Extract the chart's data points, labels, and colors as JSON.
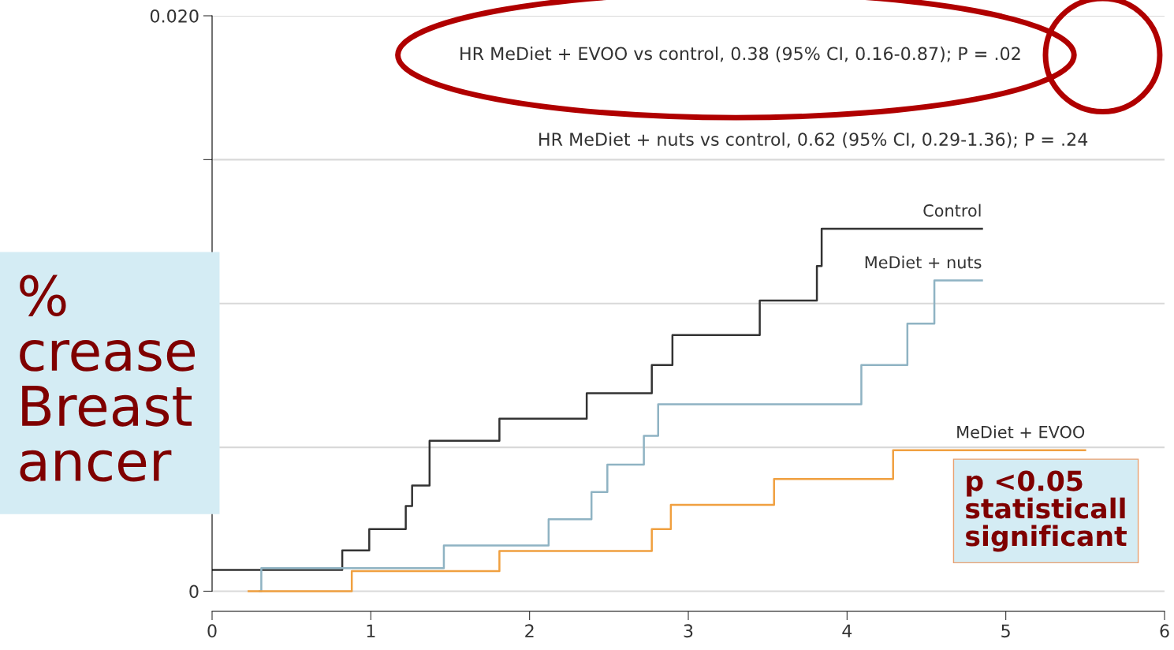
{
  "chart_data": {
    "type": "step",
    "xlim": [
      0,
      6
    ],
    "xticks": [
      0,
      1,
      2,
      3,
      4,
      5,
      6
    ],
    "ylim": [
      -0.0007,
      0.02
    ],
    "yticks": [
      0,
      {
        "value": 0.005,
        "label": null
      },
      {
        "value": 0.01,
        "label": null
      },
      {
        "value": 0.015,
        "label": null
      },
      {
        "value": 0.02,
        "label": "0.020"
      }
    ],
    "grid": "y",
    "series": [
      {
        "name": "Control",
        "color": "#333333",
        "x": [
          0,
          0.82,
          0.99,
          1.22,
          1.26,
          1.37,
          1.81,
          2.36,
          2.77,
          2.9,
          3.45,
          3.81,
          3.84,
          4.85
        ],
        "values": [
          0.00074,
          0.00142,
          0.00216,
          0.00296,
          0.00367,
          0.00523,
          0.006,
          0.00688,
          0.00786,
          0.0089,
          0.0101,
          0.0113,
          0.0126,
          0.0126
        ]
      },
      {
        "name": "MeDiet + nuts",
        "color": "#8fb3c3",
        "x": [
          0.3,
          0.31,
          1.46,
          2.12,
          2.39,
          2.49,
          2.72,
          2.81,
          4.09,
          4.38,
          4.55,
          4.85
        ],
        "values": [
          0,
          0.0008,
          0.00159,
          0.0025,
          0.00345,
          0.0044,
          0.0054,
          0.0065,
          0.00786,
          0.0093,
          0.0108,
          0.0108
        ]
      },
      {
        "name": "MeDiet + EVOO",
        "color": "#f0a040",
        "x": [
          0.23,
          0.88,
          1.81,
          2.77,
          2.89,
          3.54,
          4.29,
          5.5
        ],
        "values": [
          0,
          0.0007,
          0.0014,
          0.00216,
          0.003,
          0.0039,
          0.0049,
          0.0049
        ]
      }
    ],
    "annotations": [
      "HR MeDiet + EVOO vs control, 0.38 (95% CI, 0.16-0.87); P = .02",
      "HR MeDiet + nuts vs control, 0.62 (95% CI, 0.29-1.36); P = .24",
      "%\ncrease\nBreast\nancer",
      "p <0.05\nstatisticall\nsignificant"
    ]
  }
}
